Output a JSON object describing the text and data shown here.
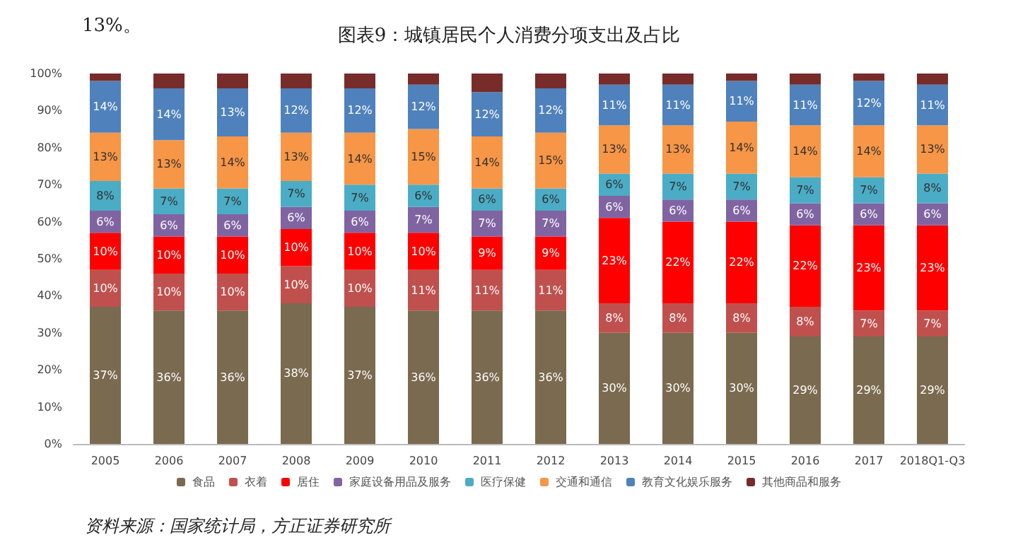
{
  "chart_data": {
    "type": "bar",
    "stacked": true,
    "title": "图表9：城镇居民个人消费分项支出及占比",
    "annotations": [
      "13%。",
      "资料来源：国家统计局，方正证券研究所"
    ],
    "categories": [
      "2005",
      "2006",
      "2007",
      "2008",
      "2009",
      "2010",
      "2011",
      "2012",
      "2013",
      "2014",
      "2015",
      "2016",
      "2017",
      "2018Q1-Q3"
    ],
    "ylim": [
      0,
      100
    ],
    "yticks": [
      {
        "value": 0,
        "label": "0%"
      },
      {
        "value": 10,
        "label": "10%"
      },
      {
        "value": 20,
        "label": "20%"
      },
      {
        "value": 30,
        "label": "30%"
      },
      {
        "value": 40,
        "label": "40%"
      },
      {
        "value": 50,
        "label": "50%"
      },
      {
        "value": 60,
        "label": "60%"
      },
      {
        "value": 70,
        "label": "70%"
      },
      {
        "value": 80,
        "label": "80%"
      },
      {
        "value": 90,
        "label": "90%"
      },
      {
        "value": 100,
        "label": "100%"
      }
    ],
    "grid": false,
    "legend": "bottom",
    "series": [
      {
        "name": "食品",
        "color": "#7a6a4f",
        "values": [
          37,
          36,
          36,
          38,
          37,
          36,
          36,
          36,
          30,
          30,
          30,
          29,
          29,
          29
        ],
        "value_labels": [
          "37%",
          "36%",
          "36%",
          "38%",
          "37%",
          "36%",
          "36%",
          "36%",
          "30%",
          "30%",
          "30%",
          "29%",
          "29%",
          "29%"
        ]
      },
      {
        "name": "衣着",
        "color": "#c0504d",
        "values": [
          10,
          10,
          10,
          10,
          10,
          11,
          11,
          11,
          8,
          8,
          8,
          8,
          7,
          7
        ],
        "value_labels": [
          "10%",
          "10%",
          "10%",
          "10%",
          "10%",
          "11%",
          "11%",
          "11%",
          "8%",
          "8%",
          "8%",
          "8%",
          "7%",
          "7%"
        ]
      },
      {
        "name": "居住",
        "color": "#ff0000",
        "values": [
          10,
          10,
          10,
          10,
          10,
          10,
          9,
          9,
          23,
          22,
          22,
          22,
          23,
          23
        ],
        "value_labels": [
          "10%",
          "10%",
          "10%",
          "10%",
          "10%",
          "10%",
          "9%",
          "9%",
          "23%",
          "22%",
          "22%",
          "22%",
          "23%",
          "23%"
        ]
      },
      {
        "name": "家庭设备用品及服务",
        "color": "#8064a2",
        "values": [
          6,
          6,
          6,
          6,
          6,
          7,
          7,
          7,
          6,
          6,
          6,
          6,
          6,
          6
        ],
        "value_labels": [
          "6%",
          "6%",
          "6%",
          "6%",
          "6%",
          "7%",
          "7%",
          "7%",
          "6%",
          "6%",
          "6%",
          "6%",
          "6%",
          "6%"
        ]
      },
      {
        "name": "医疗保健",
        "color": "#4bacc6",
        "values": [
          8,
          7,
          7,
          7,
          7,
          6,
          6,
          6,
          6,
          7,
          7,
          7,
          7,
          8
        ],
        "value_labels": [
          "8%",
          "7%",
          "7%",
          "7%",
          "7%",
          "6%",
          "6%",
          "6%",
          "6%",
          "7%",
          "7%",
          "7%",
          "7%",
          "8%"
        ]
      },
      {
        "name": "交通和通信",
        "color": "#f79646",
        "values": [
          13,
          13,
          14,
          13,
          14,
          15,
          14,
          15,
          13,
          13,
          14,
          14,
          14,
          13
        ],
        "value_labels": [
          "13%",
          "13%",
          "14%",
          "13%",
          "14%",
          "15%",
          "14%",
          "15%",
          "13%",
          "13%",
          "14%",
          "14%",
          "14%",
          "13%"
        ]
      },
      {
        "name": "教育文化娱乐服务",
        "color": "#4f81bd",
        "values": [
          14,
          14,
          13,
          12,
          12,
          12,
          12,
          12,
          11,
          11,
          11,
          11,
          12,
          11
        ],
        "value_labels": [
          "14%",
          "14%",
          "13%",
          "12%",
          "12%",
          "12%",
          "12%",
          "12%",
          "11%",
          "11%",
          "11%",
          "11%",
          "12%",
          "11%"
        ]
      },
      {
        "name": "其他商品和服务",
        "color": "#772c2a",
        "values": [
          2,
          4,
          4,
          4,
          4,
          3,
          5,
          4,
          3,
          3,
          2,
          3,
          2,
          3
        ]
      }
    ]
  }
}
